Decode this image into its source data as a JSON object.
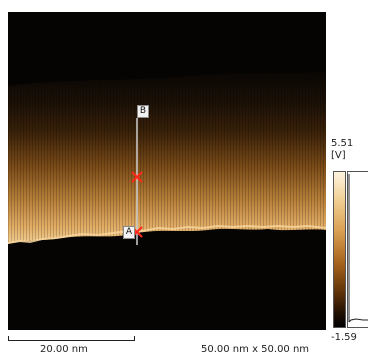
{
  "colorscale": {
    "max_label": "5.51",
    "unit_label": "[V]",
    "min_label": "-1.59"
  },
  "markers": {
    "start_label": "A",
    "end_label": "B"
  },
  "scalebar": {
    "label": "20.00 nm"
  },
  "image_size": {
    "label": "50.00 nm x 50.00 nm"
  },
  "colors": {
    "background": "#050403",
    "band_bright": "#e0a860",
    "marker_cross": "#ff2a1a",
    "profile_line": "#cfcfcf"
  },
  "icons": {
    "marker_cross": "cross-icon"
  }
}
